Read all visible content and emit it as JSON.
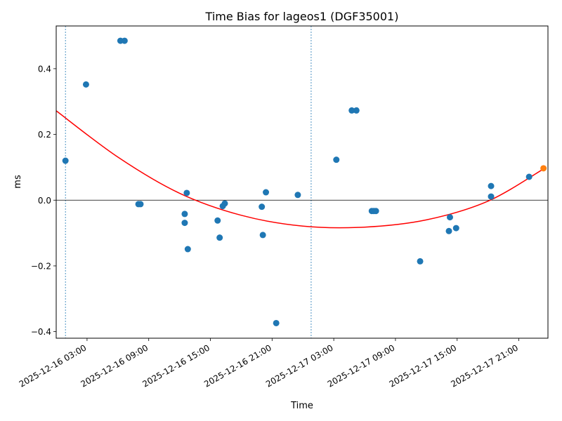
{
  "chart_data": {
    "type": "scatter",
    "title": "Time Bias for lageos1 (DGF35001)",
    "xlabel": "Time",
    "ylabel": "ms",
    "xlim": [
      "2025-12-16T00:00",
      "2025-12-17T23:50"
    ],
    "ylim": [
      -0.42,
      0.53
    ],
    "x_ticks": [
      {
        "t": "2025-12-16T03:00",
        "label": "2025-12-16 03:00"
      },
      {
        "t": "2025-12-16T09:00",
        "label": "2025-12-16 09:00"
      },
      {
        "t": "2025-12-16T15:00",
        "label": "2025-12-16 15:00"
      },
      {
        "t": "2025-12-16T21:00",
        "label": "2025-12-16 21:00"
      },
      {
        "t": "2025-12-17T03:00",
        "label": "2025-12-17 03:00"
      },
      {
        "t": "2025-12-17T09:00",
        "label": "2025-12-17 09:00"
      },
      {
        "t": "2025-12-17T15:00",
        "label": "2025-12-17 15:00"
      },
      {
        "t": "2025-12-17T21:00",
        "label": "2025-12-17 21:00"
      }
    ],
    "y_ticks": [
      {
        "v": -0.4,
        "label": "−0.4"
      },
      {
        "v": -0.2,
        "label": "−0.2"
      },
      {
        "v": 0.0,
        "label": "0.0"
      },
      {
        "v": 0.2,
        "label": "0.2"
      },
      {
        "v": 0.4,
        "label": "0.4"
      }
    ],
    "zero_line": 0.0,
    "vertical_markers": [
      "2025-12-16T00:54",
      "2025-12-17T00:48"
    ],
    "points": [
      {
        "t": "2025-12-16T00:54",
        "y": 0.12
      },
      {
        "t": "2025-12-16T02:54",
        "y": 0.352
      },
      {
        "t": "2025-12-16T06:15",
        "y": 0.485
      },
      {
        "t": "2025-12-16T06:39",
        "y": 0.485
      },
      {
        "t": "2025-12-16T08:00",
        "y": -0.012
      },
      {
        "t": "2025-12-16T08:12",
        "y": -0.012
      },
      {
        "t": "2025-12-16T12:30",
        "y": -0.042
      },
      {
        "t": "2025-12-16T12:30",
        "y": -0.069
      },
      {
        "t": "2025-12-16T12:42",
        "y": 0.022
      },
      {
        "t": "2025-12-16T12:48",
        "y": -0.149
      },
      {
        "t": "2025-12-16T15:42",
        "y": -0.062
      },
      {
        "t": "2025-12-16T15:54",
        "y": -0.114
      },
      {
        "t": "2025-12-16T16:12",
        "y": -0.018
      },
      {
        "t": "2025-12-16T16:24",
        "y": -0.01
      },
      {
        "t": "2025-12-16T20:00",
        "y": -0.02
      },
      {
        "t": "2025-12-16T20:06",
        "y": -0.106
      },
      {
        "t": "2025-12-16T20:24",
        "y": 0.024
      },
      {
        "t": "2025-12-16T21:24",
        "y": -0.374
      },
      {
        "t": "2025-12-16T23:30",
        "y": 0.016
      },
      {
        "t": "2025-12-17T03:15",
        "y": 0.123
      },
      {
        "t": "2025-12-17T04:45",
        "y": 0.273
      },
      {
        "t": "2025-12-17T05:12",
        "y": 0.273
      },
      {
        "t": "2025-12-17T06:42",
        "y": -0.033
      },
      {
        "t": "2025-12-17T06:54",
        "y": -0.033
      },
      {
        "t": "2025-12-17T07:06",
        "y": -0.033
      },
      {
        "t": "2025-12-17T11:24",
        "y": -0.186
      },
      {
        "t": "2025-12-17T14:12",
        "y": -0.094
      },
      {
        "t": "2025-12-17T14:18",
        "y": -0.052
      },
      {
        "t": "2025-12-17T14:54",
        "y": -0.085
      },
      {
        "t": "2025-12-17T18:18",
        "y": 0.043
      },
      {
        "t": "2025-12-17T18:18",
        "y": 0.011
      },
      {
        "t": "2025-12-17T22:00",
        "y": 0.071
      }
    ],
    "highlight_point": {
      "t": "2025-12-17T23:24",
      "y": 0.097
    },
    "fit_curve": [
      {
        "t": "2025-12-16T00:00",
        "y": 0.272
      },
      {
        "t": "2025-12-16T06:00",
        "y": 0.131
      },
      {
        "t": "2025-12-16T12:00",
        "y": 0.021
      },
      {
        "t": "2025-12-16T18:00",
        "y": -0.046
      },
      {
        "t": "2025-12-17T00:00",
        "y": -0.079
      },
      {
        "t": "2025-12-17T06:00",
        "y": -0.082
      },
      {
        "t": "2025-12-17T12:00",
        "y": -0.06
      },
      {
        "t": "2025-12-17T18:00",
        "y": -0.003
      },
      {
        "t": "2025-12-17T23:24",
        "y": 0.095
      }
    ],
    "colors": {
      "points": "#1f77b4",
      "highlight": "#ff7f0e",
      "fit": "#ff0000",
      "zero_line": "#000000",
      "markers": "#1f77b4"
    },
    "grid": false,
    "legend": "none"
  }
}
